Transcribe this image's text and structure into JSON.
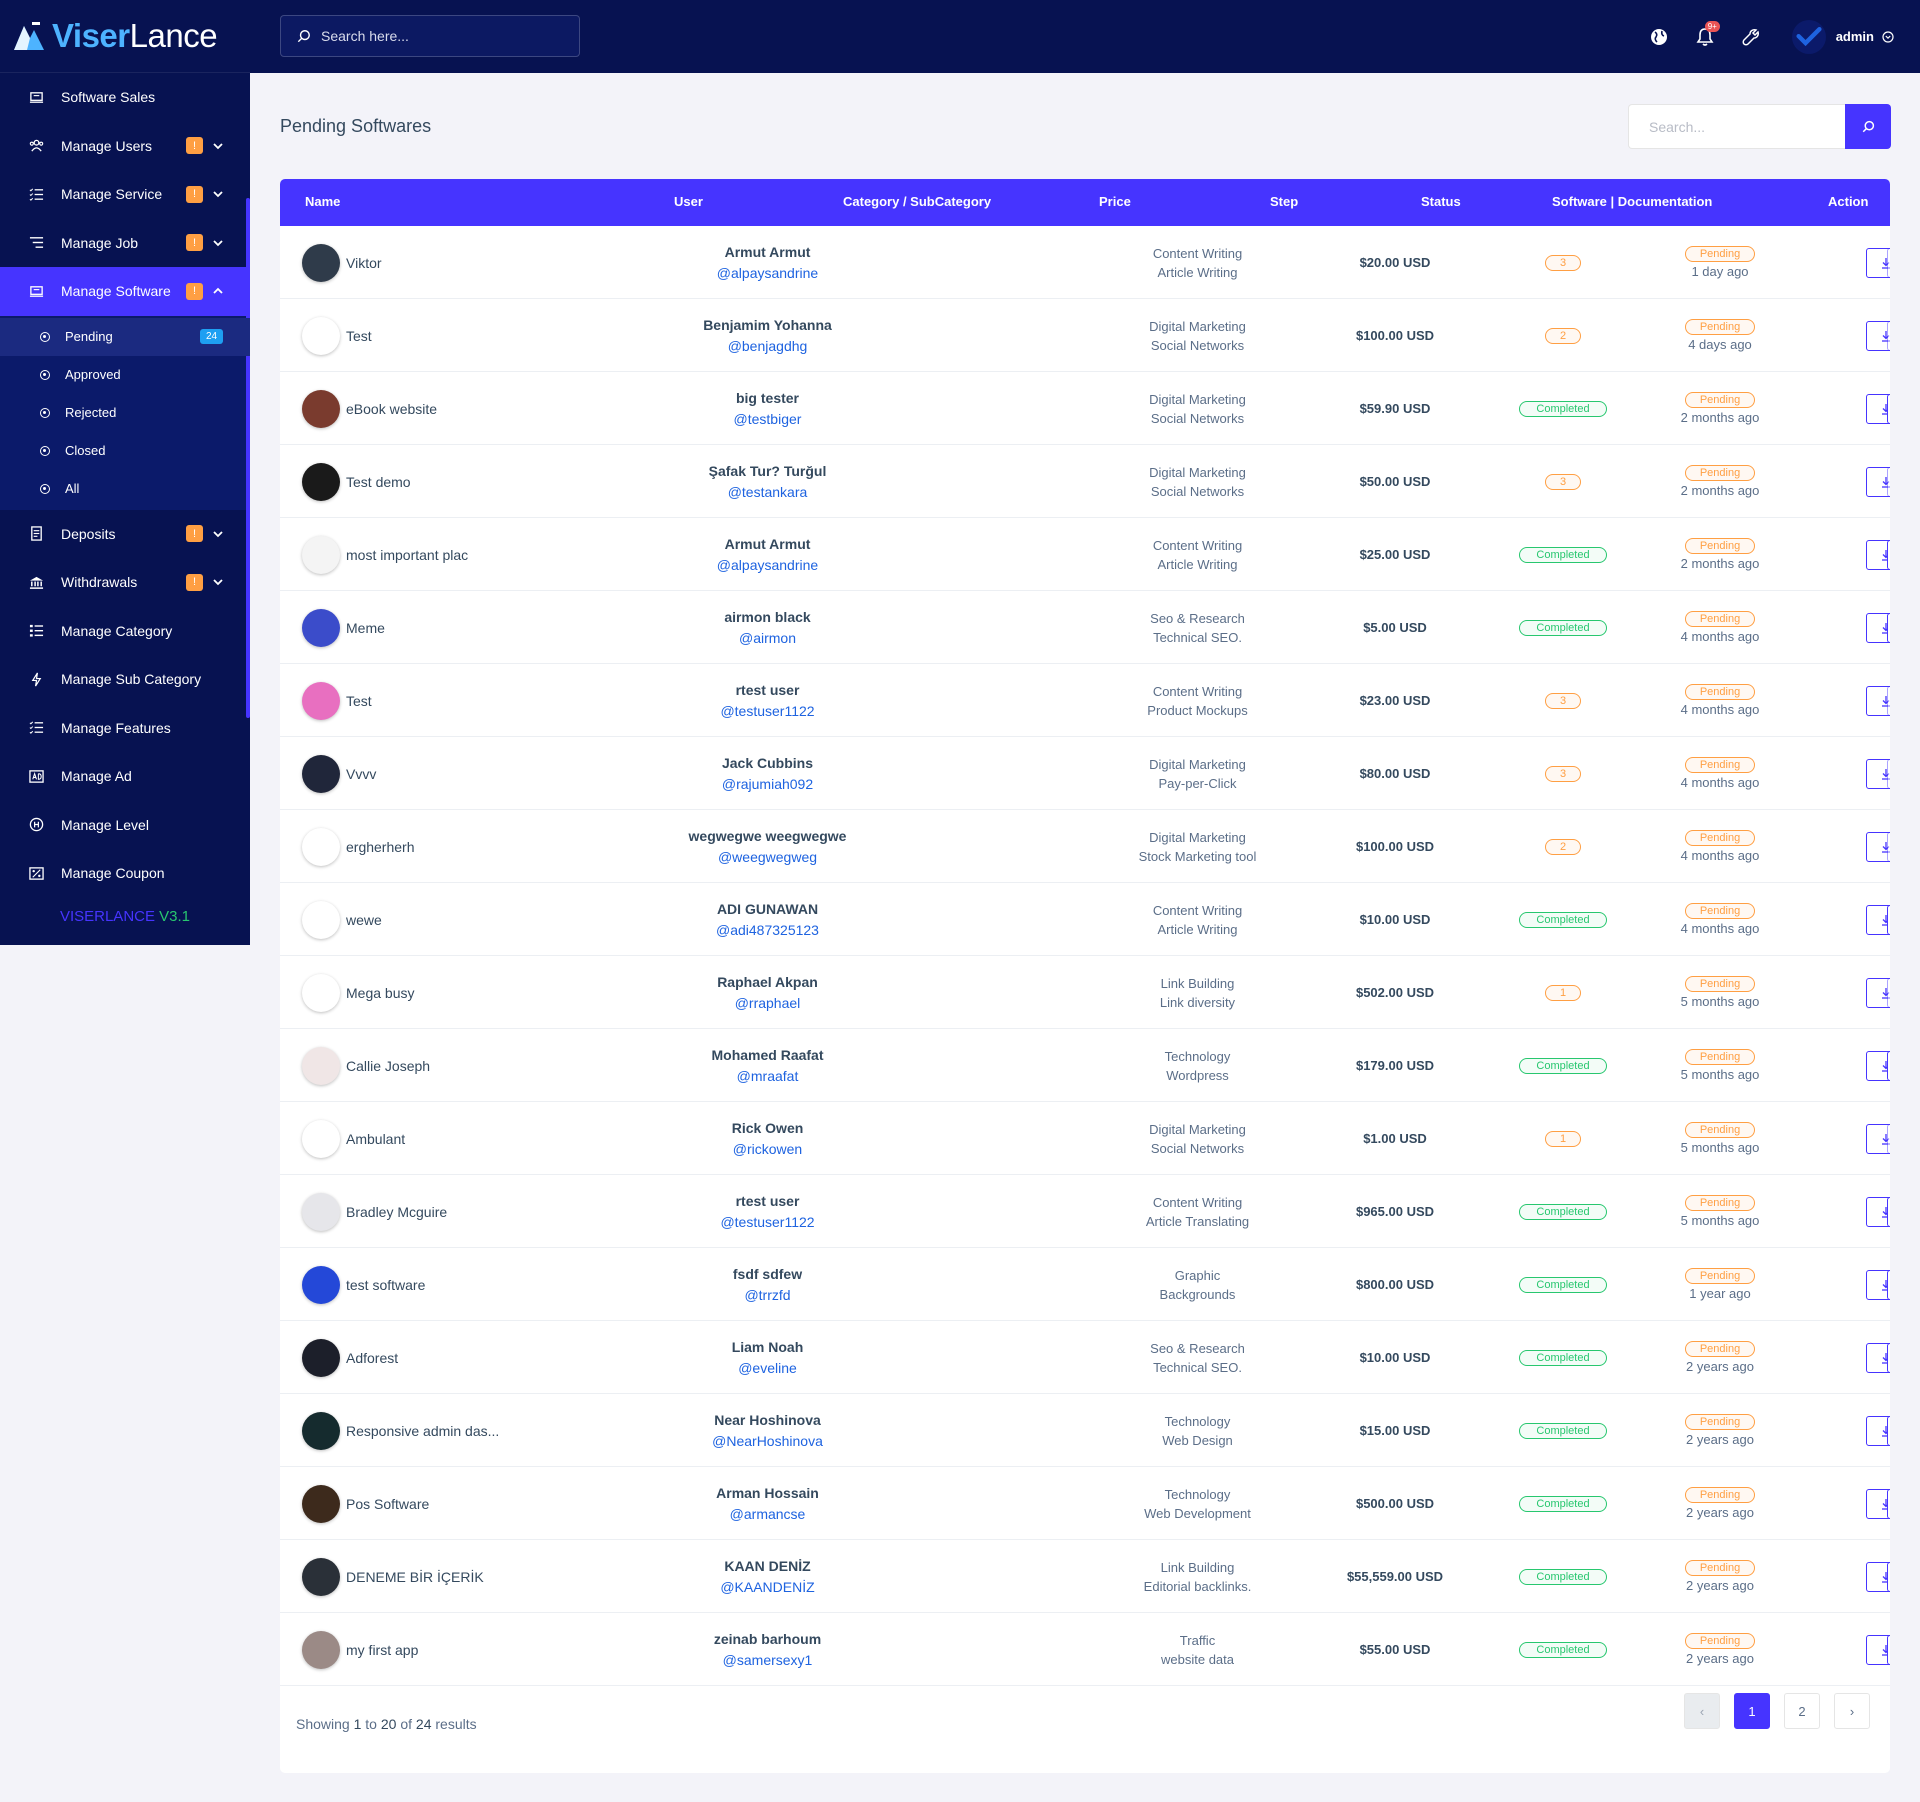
{
  "brand": {
    "part1": "Viser",
    "part2": "Lance"
  },
  "sidebar": {
    "items": [
      {
        "label": "Software Sales",
        "icon": "sales-icon"
      },
      {
        "label": "Manage Users",
        "icon": "users-icon",
        "badge": "!"
      },
      {
        "label": "Manage Service",
        "icon": "service-icon",
        "badge": "!"
      },
      {
        "label": "Manage Job",
        "icon": "job-icon",
        "badge": "!"
      },
      {
        "label": "Manage Software",
        "icon": "software-icon",
        "badge": "!"
      },
      {
        "label": "Deposits",
        "icon": "deposit-icon",
        "badge": "!"
      },
      {
        "label": "Withdrawals",
        "icon": "bank-icon",
        "badge": "!"
      },
      {
        "label": "Manage Category",
        "icon": "category-icon"
      },
      {
        "label": "Manage Sub Category",
        "icon": "subcategory-icon"
      },
      {
        "label": "Manage Features",
        "icon": "features-icon"
      },
      {
        "label": "Manage Ad",
        "icon": "ad-icon"
      },
      {
        "label": "Manage Level",
        "icon": "level-icon"
      },
      {
        "label": "Manage Coupon",
        "icon": "coupon-icon"
      }
    ],
    "software_sub": [
      {
        "label": "Pending",
        "count": "24"
      },
      {
        "label": "Approved"
      },
      {
        "label": "Rejected"
      },
      {
        "label": "Closed"
      },
      {
        "label": "All"
      }
    ],
    "version_a": "VISERLANCE",
    "version_b": "V3.1"
  },
  "topbar": {
    "search_placeholder": "Search here...",
    "notif_count": "9+",
    "admin_name": "admin"
  },
  "page": {
    "title": "Pending Softwares",
    "search_placeholder": "Search..."
  },
  "table": {
    "headers": {
      "name": "Name",
      "user": "User",
      "category": "Category / SubCategory",
      "price": "Price",
      "step": "Step",
      "status": "Status",
      "files": "Software | Documentation",
      "action": "Action"
    },
    "action_label": "Action",
    "status_label": "Pending",
    "rows": [
      {
        "name": "Viktor",
        "user": "Armut Armut",
        "handle": "@alpaysandrine",
        "cat": "Content Writing",
        "sub": "Article Writing",
        "price": "$20.00 USD",
        "step": "3",
        "ago": "1 day ago",
        "thumb": "#2f3b4a",
        "active": false
      },
      {
        "name": "Test",
        "user": "Benjamim Yohanna",
        "handle": "@benjagdhg",
        "cat": "Digital Marketing",
        "sub": "Social Networks",
        "price": "$100.00 USD",
        "step": "2",
        "ago": "4 days ago",
        "thumb": "#ffffff",
        "active": false
      },
      {
        "name": "eBook website",
        "user": "big tester",
        "handle": "@testbiger",
        "cat": "Digital Marketing",
        "sub": "Social Networks",
        "price": "$59.90 USD",
        "step": "Completed",
        "ago": "2 months ago",
        "thumb": "#7a3b2e",
        "active": true
      },
      {
        "name": "Test demo",
        "user": "Şafak Tur? Turğul",
        "handle": "@testankara",
        "cat": "Digital Marketing",
        "sub": "Social Networks",
        "price": "$50.00 USD",
        "step": "3",
        "ago": "2 months ago",
        "thumb": "#1a1a1a",
        "active": false
      },
      {
        "name": "most important plac",
        "user": "Armut Armut",
        "handle": "@alpaysandrine",
        "cat": "Content Writing",
        "sub": "Article Writing",
        "price": "$25.00 USD",
        "step": "Completed",
        "ago": "2 months ago",
        "thumb": "#f4f4f4",
        "active": true
      },
      {
        "name": "Meme",
        "user": "airmon black",
        "handle": "@airmon",
        "cat": "Seo & Research",
        "sub": "Technical SEO.",
        "price": "$5.00 USD",
        "step": "Completed",
        "ago": "4 months ago",
        "thumb": "#3b4cca",
        "active": true
      },
      {
        "name": "Test",
        "user": "rtest user",
        "handle": "@testuser1122",
        "cat": "Content Writing",
        "sub": "Product Mockups",
        "price": "$23.00 USD",
        "step": "3",
        "ago": "4 months ago",
        "thumb": "#e86fc0",
        "active": false
      },
      {
        "name": "Vvvv",
        "user": "Jack Cubbins",
        "handle": "@rajumiah092",
        "cat": "Digital Marketing",
        "sub": "Pay-per-Click",
        "price": "$80.00 USD",
        "step": "3",
        "ago": "4 months ago",
        "thumb": "#20263a",
        "active": false
      },
      {
        "name": "ergherherh",
        "user": "wegwegwe weegwegwe",
        "handle": "@weegwegweg",
        "cat": "Digital Marketing",
        "sub": "Stock Marketing tool",
        "price": "$100.00 USD",
        "step": "2",
        "ago": "4 months ago",
        "thumb": "#ffffff",
        "active": false
      },
      {
        "name": "wewe",
        "user": "ADI GUNAWAN",
        "handle": "@adi487325123",
        "cat": "Content Writing",
        "sub": "Article Writing",
        "price": "$10.00 USD",
        "step": "Completed",
        "ago": "4 months ago",
        "thumb": "#ffffff",
        "active": true
      },
      {
        "name": "Mega busy",
        "user": "Raphael Akpan",
        "handle": "@rraphael",
        "cat": "Link Building",
        "sub": "Link diversity",
        "price": "$502.00 USD",
        "step": "1",
        "ago": "5 months ago",
        "thumb": "#ffffff",
        "active": false
      },
      {
        "name": "Callie Joseph",
        "user": "Mohamed Raafat",
        "handle": "@mraafat",
        "cat": "Technology",
        "sub": "Wordpress",
        "price": "$179.00 USD",
        "step": "Completed",
        "ago": "5 months ago",
        "thumb": "#f0e6e6",
        "active": true
      },
      {
        "name": "Ambulant",
        "user": "Rick Owen",
        "handle": "@rickowen",
        "cat": "Digital Marketing",
        "sub": "Social Networks",
        "price": "$1.00 USD",
        "step": "1",
        "ago": "5 months ago",
        "thumb": "#ffffff",
        "active": false
      },
      {
        "name": "Bradley Mcguire",
        "user": "rtest user",
        "handle": "@testuser1122",
        "cat": "Content Writing",
        "sub": "Article Translating",
        "price": "$965.00 USD",
        "step": "Completed",
        "ago": "5 months ago",
        "thumb": "#e6e6ea",
        "active": true
      },
      {
        "name": "test software",
        "user": "fsdf sdfew",
        "handle": "@trrzfd",
        "cat": "Graphic",
        "sub": "Backgrounds",
        "price": "$800.00 USD",
        "step": "Completed",
        "ago": "1 year ago",
        "thumb": "#2448d8",
        "active": true
      },
      {
        "name": "Adforest",
        "user": "Liam Noah",
        "handle": "@eveline",
        "cat": "Seo & Research",
        "sub": "Technical SEO.",
        "price": "$10.00 USD",
        "step": "Completed",
        "ago": "2 years ago",
        "thumb": "#1c1f2a",
        "active": true
      },
      {
        "name": "Responsive admin das...",
        "user": "Near Hoshinova",
        "handle": "@NearHoshinova",
        "cat": "Technology",
        "sub": "Web Design",
        "price": "$15.00 USD",
        "step": "Completed",
        "ago": "2 years ago",
        "thumb": "#152b2e",
        "active": true
      },
      {
        "name": "Pos Software",
        "user": "Arman Hossain",
        "handle": "@armancse",
        "cat": "Technology",
        "sub": "Web Development",
        "price": "$500.00 USD",
        "step": "Completed",
        "ago": "2 years ago",
        "thumb": "#3d2a1c",
        "active": true
      },
      {
        "name": "DENEME BİR İÇERİK",
        "user": "KAAN DENİZ",
        "handle": "@KAANDENİZ",
        "cat": "Link Building",
        "sub": "Editorial backlinks.",
        "price": "$55,559.00 USD",
        "step": "Completed",
        "ago": "2 years ago",
        "thumb": "#2a3038",
        "active": true
      },
      {
        "name": "my first app",
        "user": "zeinab barhoum",
        "handle": "@samersexy1",
        "cat": "Traffic",
        "sub": "website data",
        "price": "$55.00 USD",
        "step": "Completed",
        "ago": "2 years ago",
        "thumb": "#9b8a86",
        "active": true
      }
    ]
  },
  "pagination": {
    "showing_prefix": "Showing",
    "from": "1",
    "to_word": "to",
    "to": "20",
    "of_word": "of",
    "total": "24",
    "suffix": "results",
    "prev": "‹",
    "pages": [
      "1",
      "2"
    ],
    "next": "›"
  },
  "colors": {
    "primary": "#4634ff",
    "sidebar": "#071251",
    "warning": "#ff9f43",
    "success": "#28c76f"
  }
}
